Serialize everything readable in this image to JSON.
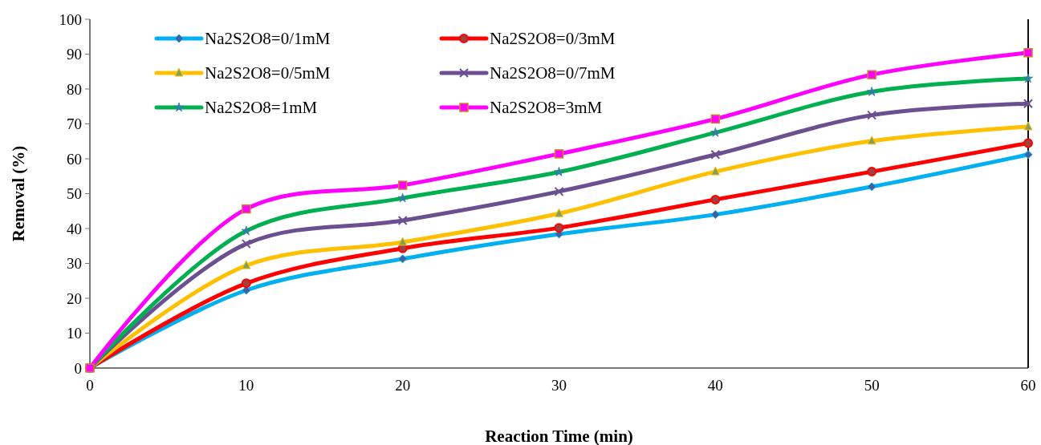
{
  "chart_data": {
    "type": "line",
    "xlabel": "Reaction Time (min)",
    "ylabel": "Removal (%)",
    "x": [
      0,
      10,
      20,
      30,
      40,
      50,
      60
    ],
    "xlim": [
      0,
      60
    ],
    "xticks": [
      0,
      10,
      20,
      30,
      40,
      50,
      60
    ],
    "ylim": [
      0,
      100
    ],
    "yticks": [
      0,
      10,
      20,
      30,
      40,
      50,
      60,
      70,
      80,
      90,
      100
    ],
    "grid": false,
    "legend": "top left",
    "line_style": "solid",
    "series": [
      {
        "name": "Na2S2O8=0/1mM",
        "color": "#00b0f0",
        "marker": "diamond",
        "values": [
          0,
          22.3,
          31.3,
          38.4,
          44,
          52,
          61.2
        ]
      },
      {
        "name": "Na2S2O8=0/3mM",
        "color": "#ff0000",
        "marker": "circle",
        "values": [
          0,
          24.3,
          34.3,
          40.2,
          48.3,
          56.3,
          64.5
        ]
      },
      {
        "name": "Na2S2O8=0/5mM",
        "color": "#ffc000",
        "marker": "triangle",
        "values": [
          0,
          29.4,
          36.1,
          44.3,
          56.3,
          65.1,
          69.2
        ]
      },
      {
        "name": "Na2S2O8=0/7mM",
        "color": "#6a5090",
        "marker": "cross",
        "values": [
          0,
          35.6,
          42.3,
          50.6,
          61.2,
          72.5,
          75.8
        ]
      },
      {
        "name": "Na2S2O8=1mM",
        "color": "#00b050",
        "marker": "star",
        "values": [
          0,
          39.3,
          48.7,
          56.2,
          67.5,
          79.2,
          83
        ]
      },
      {
        "name": "Na2S2O8=3mM",
        "color": "#ff00ff",
        "marker": "square",
        "values": [
          0,
          45.6,
          52.4,
          61.4,
          71.4,
          84.1,
          90.4
        ]
      }
    ]
  }
}
